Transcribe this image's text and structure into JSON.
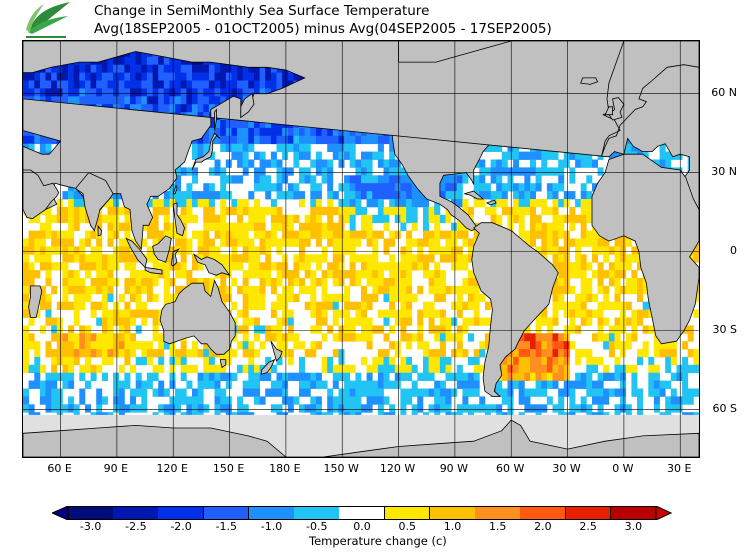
{
  "title": {
    "line1": "Change in SemiMonthly Sea Surface Temperature",
    "line2": "Avg(18SEP2005 - 01OCT2005) minus Avg(04SEP2005 - 17SEP2005)"
  },
  "map": {
    "projection": "equirectangular",
    "lon_range": [
      40,
      400
    ],
    "lat_range": [
      -78,
      80
    ],
    "land_color": "#c0c0c0",
    "ice_color": "#e0e0e0",
    "border_color": "#000000"
  },
  "lat_labels": [
    "60 N",
    "30 N",
    "0",
    "30 S",
    "60 S"
  ],
  "lat_values": [
    60,
    30,
    0,
    -30,
    -60
  ],
  "lon_labels": [
    "60 E",
    "90 E",
    "120 E",
    "150 E",
    "180 E",
    "150 W",
    "120 W",
    "90 W",
    "60 W",
    "30 W",
    "0 W",
    "30 E"
  ],
  "lon_values": [
    60,
    90,
    120,
    150,
    180,
    210,
    240,
    270,
    300,
    330,
    360,
    390
  ],
  "colorbar": {
    "title": "Temperature change  (c)",
    "tick_labels": [
      "-3.0",
      "-2.5",
      "-2.0",
      "-1.5",
      "-1.0",
      "-0.5",
      "0.0",
      "0.5",
      "1.0",
      "1.5",
      "2.0",
      "2.5",
      "3.0"
    ],
    "colors": [
      "#000c7a",
      "#0018b0",
      "#0030e8",
      "#1f60ff",
      "#1e90ff",
      "#21c4f2",
      "#ffffff",
      "#ffe800",
      "#ffc000",
      "#ff9020",
      "#ff5810",
      "#e82000",
      "#b80000"
    ],
    "min_arrow_color": "#000080",
    "max_arrow_color": "#d00000"
  }
}
